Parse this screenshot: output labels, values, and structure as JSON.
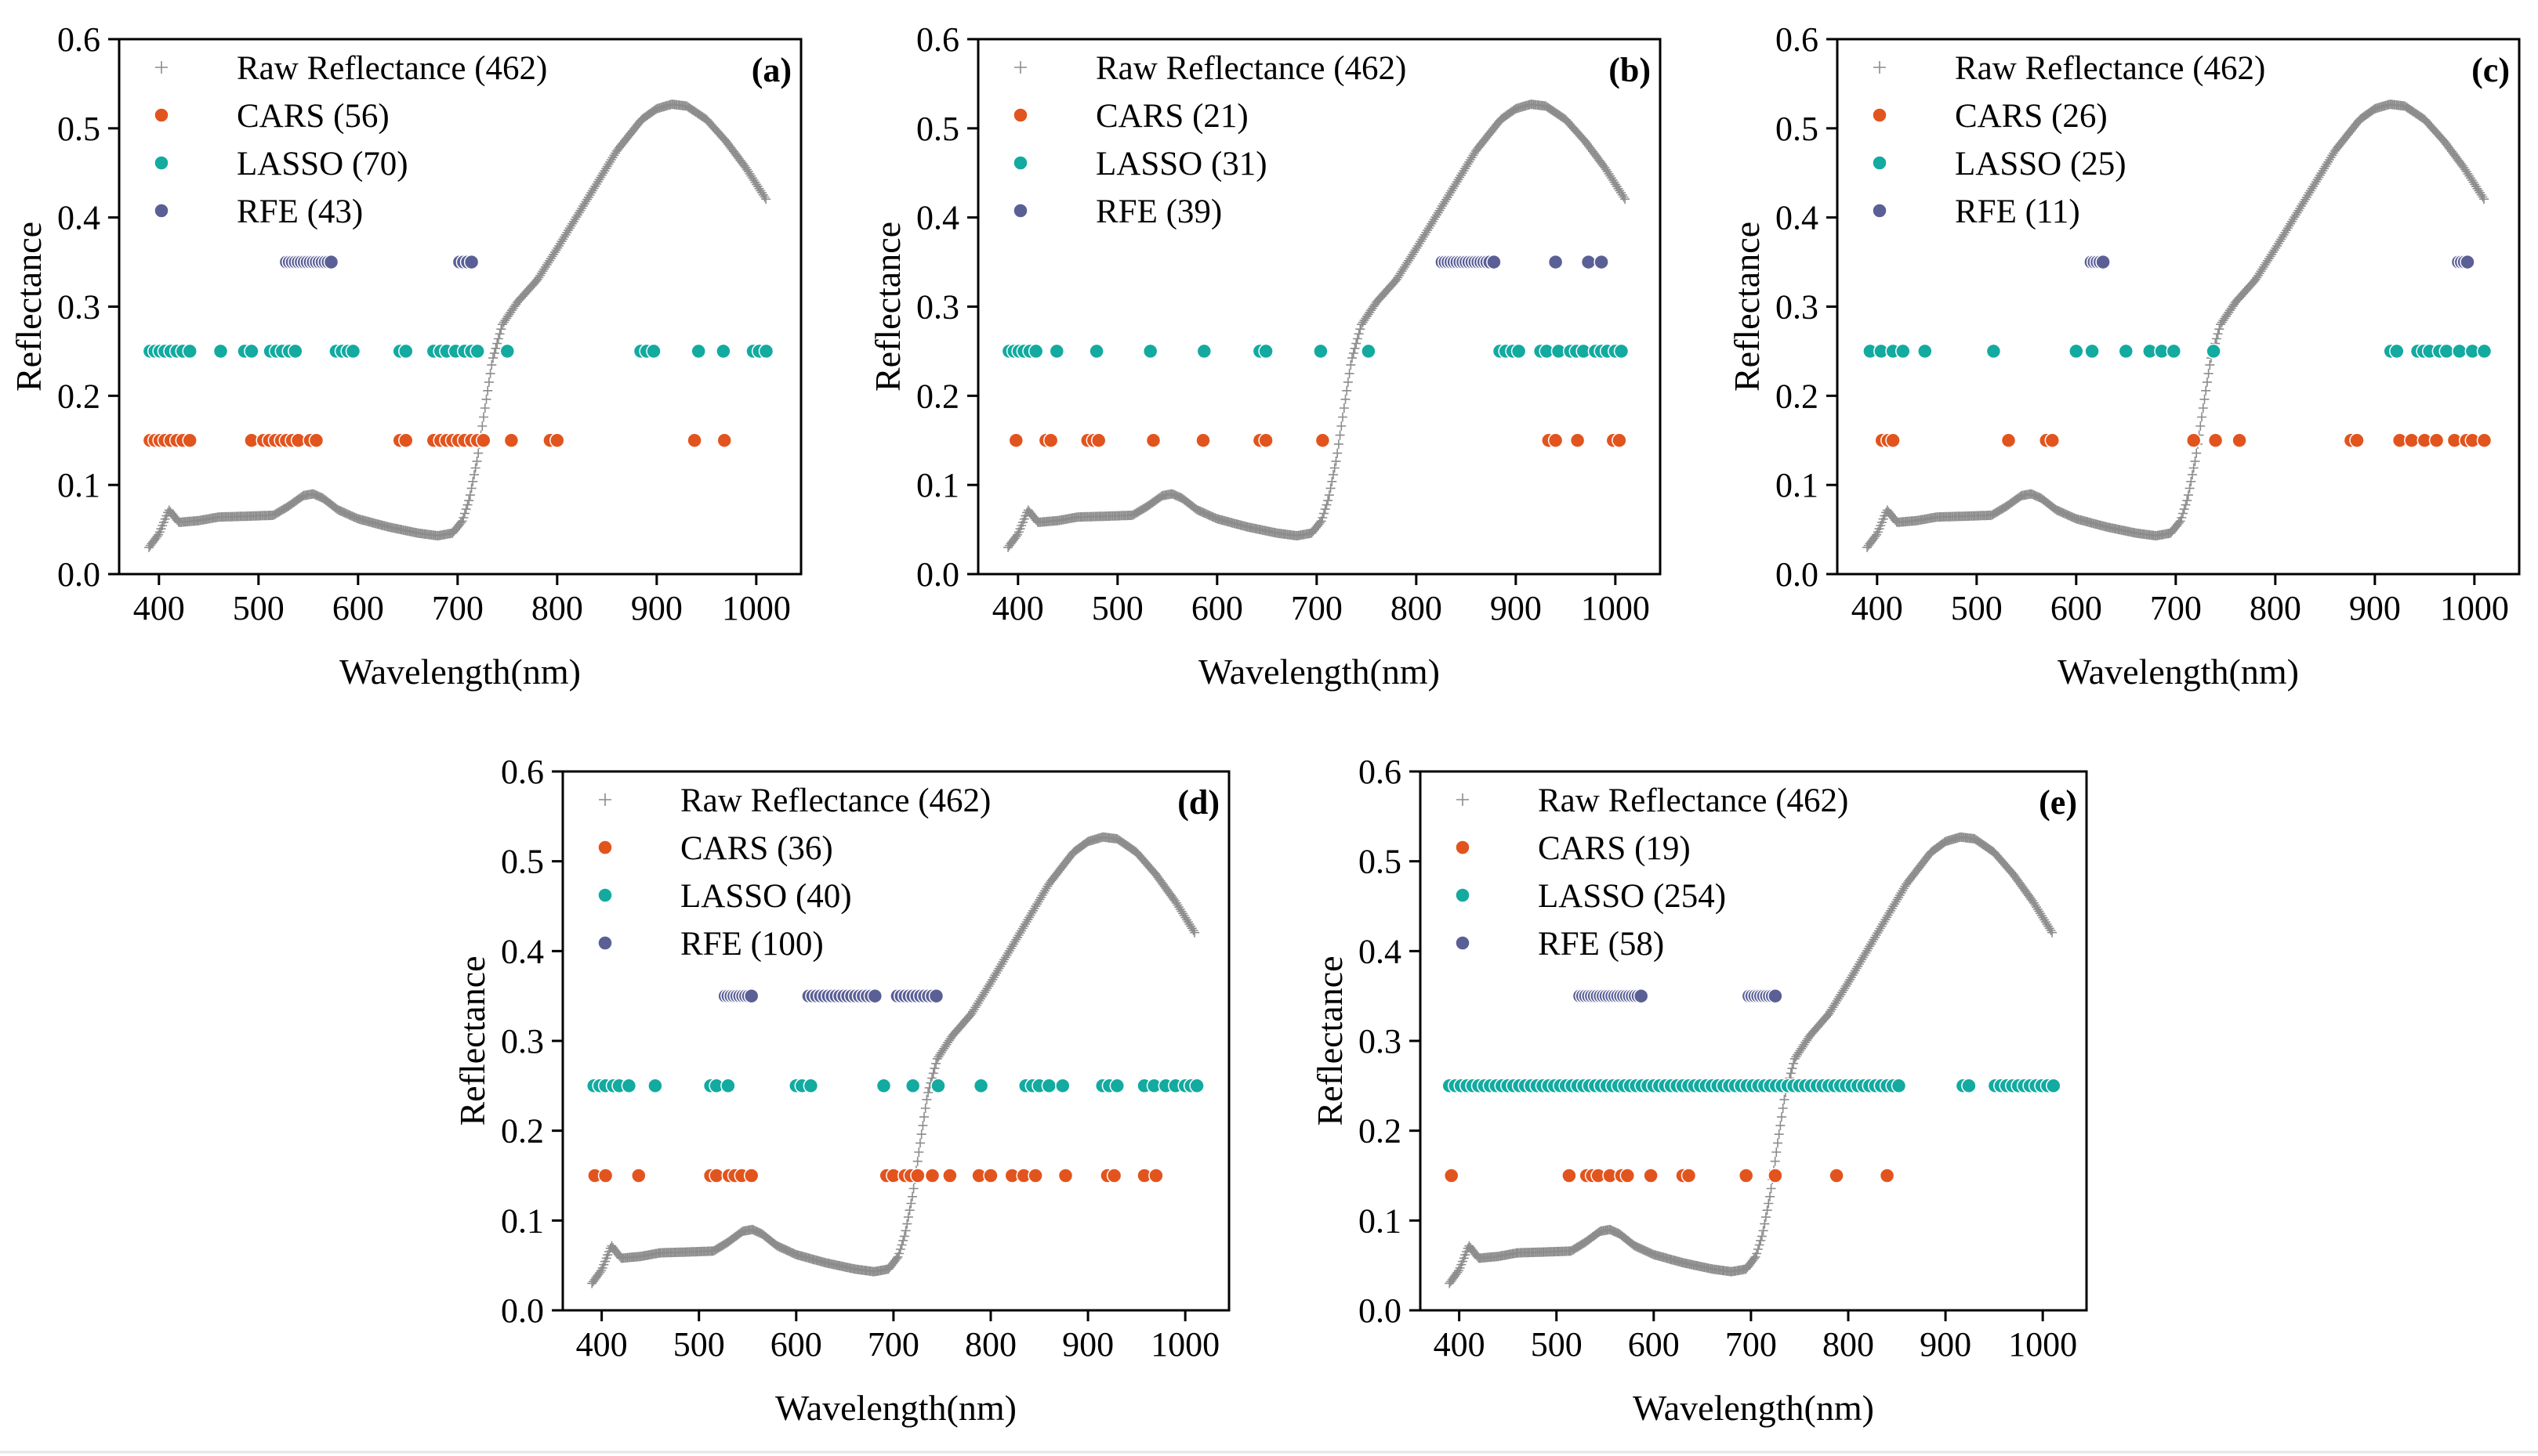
{
  "colors": {
    "raw": "#8c8c8c",
    "cars": "#e2541e",
    "lasso": "#13aaa0",
    "rfe": "#5a5f96"
  },
  "chart_data": [
    {
      "type": "scatter",
      "panel_label": "(a)",
      "xlabel": "Wavelength(nm)",
      "ylabel": "Reflectance",
      "xlim": [
        360,
        1045
      ],
      "ylim": [
        0.0,
        0.6
      ],
      "xticks": [
        "400",
        "500",
        "600",
        "700",
        "800",
        "900",
        "1000"
      ],
      "yticks": [
        "0.0",
        "0.1",
        "0.2",
        "0.3",
        "0.4",
        "0.5",
        "0.6"
      ],
      "legend": [
        "Raw Reflectance (462)",
        "CARS (56)",
        "LASSO (70)",
        "RFE (43)"
      ],
      "series": [
        {
          "name": "CARS",
          "y": 0.15,
          "x": [
            391,
            396,
            401,
            406,
            412,
            418,
            424,
            431,
            493,
            505,
            511,
            517,
            523,
            528,
            534,
            540,
            552,
            558,
            642,
            648,
            676,
            683,
            689,
            695,
            701,
            707,
            714,
            720,
            726,
            754,
            793,
            800,
            938,
            968
          ]
        },
        {
          "name": "LASSO",
          "y": 0.25,
          "x": [
            391,
            396,
            401,
            406,
            412,
            418,
            424,
            431,
            462,
            486,
            493,
            512,
            518,
            524,
            531,
            537,
            578,
            584,
            590,
            595,
            642,
            648,
            676,
            683,
            689,
            698,
            707,
            714,
            720,
            750,
            884,
            890,
            897,
            942,
            967,
            997,
            1003,
            1010
          ]
        },
        {
          "name": "RFE",
          "y": 0.35,
          "x": [
            528,
            531,
            534,
            537,
            540,
            543,
            546,
            549,
            552,
            555,
            558,
            561,
            564,
            567,
            570,
            573,
            702,
            706,
            710,
            714
          ]
        }
      ]
    },
    {
      "type": "scatter",
      "panel_label": "(b)",
      "xlabel": "Wavelength(nm)",
      "ylabel": "Reflectance",
      "xlim": [
        360,
        1045
      ],
      "ylim": [
        0.0,
        0.6
      ],
      "xticks": [
        "400",
        "500",
        "600",
        "700",
        "800",
        "900",
        "1000"
      ],
      "yticks": [
        "0.0",
        "0.1",
        "0.2",
        "0.3",
        "0.4",
        "0.5",
        "0.6"
      ],
      "legend": [
        "Raw Reflectance (462)",
        "CARS (21)",
        "LASSO (31)",
        "RFE (39)"
      ],
      "series": [
        {
          "name": "CARS",
          "y": 0.15,
          "x": [
            398,
            428,
            433,
            470,
            476,
            481,
            536,
            586,
            643,
            649,
            706,
            933,
            940,
            962,
            998,
            1004
          ]
        },
        {
          "name": "LASSO",
          "y": 0.25,
          "x": [
            391,
            396,
            401,
            406,
            412,
            418,
            439,
            479,
            533,
            587,
            643,
            649,
            704,
            752,
            884,
            890,
            897,
            903,
            925,
            931,
            943,
            955,
            961,
            968,
            980,
            986,
            992,
            1000,
            1006
          ]
        },
        {
          "name": "RFE",
          "y": 0.35,
          "x": [
            826,
            829,
            832,
            835,
            838,
            841,
            844,
            847,
            850,
            853,
            856,
            859,
            862,
            865,
            868,
            871,
            874,
            878,
            940,
            973,
            986
          ]
        }
      ]
    },
    {
      "type": "scatter",
      "panel_label": "(c)",
      "xlabel": "Wavelength(nm)",
      "ylabel": "Reflectance",
      "xlim": [
        360,
        1045
      ],
      "ylim": [
        0.0,
        0.6
      ],
      "xticks": [
        "400",
        "500",
        "600",
        "700",
        "800",
        "900",
        "1000"
      ],
      "yticks": [
        "0.0",
        "0.1",
        "0.2",
        "0.3",
        "0.4",
        "0.5",
        "0.6"
      ],
      "legend": [
        "Raw Reflectance (462)",
        "CARS (26)",
        "LASSO (25)",
        "RFE (11)"
      ],
      "series": [
        {
          "name": "CARS",
          "y": 0.15,
          "x": [
            405,
            411,
            416,
            532,
            570,
            576,
            718,
            740,
            764,
            876,
            882,
            925,
            937,
            950,
            962,
            980,
            992,
            998,
            1010
          ]
        },
        {
          "name": "LASSO",
          "y": 0.25,
          "x": [
            393,
            404,
            416,
            426,
            448,
            517,
            600,
            616,
            650,
            674,
            686,
            698,
            738,
            916,
            922,
            943,
            949,
            955,
            965,
            972,
            985,
            998,
            1010
          ]
        },
        {
          "name": "RFE",
          "y": 0.35,
          "x": [
            615,
            618,
            621,
            624,
            627,
            984,
            987,
            990,
            993
          ]
        }
      ]
    },
    {
      "type": "scatter",
      "panel_label": "(d)",
      "xlabel": "Wavelength(nm)",
      "ylabel": "Reflectance",
      "xlim": [
        360,
        1045
      ],
      "ylim": [
        0.0,
        0.6
      ],
      "xticks": [
        "400",
        "500",
        "600",
        "700",
        "800",
        "900",
        "1000"
      ],
      "yticks": [
        "0.0",
        "0.1",
        "0.2",
        "0.3",
        "0.4",
        "0.5",
        "0.6"
      ],
      "legend": [
        "Raw Reflectance (462)",
        "CARS (36)",
        "LASSO (40)",
        "RFE (100)"
      ],
      "series": [
        {
          "name": "CARS",
          "y": 0.15,
          "x": [
            393,
            404,
            438,
            512,
            518,
            531,
            537,
            544,
            554,
            693,
            700,
            712,
            718,
            725,
            740,
            758,
            788,
            800,
            822,
            834,
            846,
            877,
            920,
            927,
            958,
            970
          ]
        },
        {
          "name": "LASSO",
          "y": 0.25,
          "x": [
            392,
            398,
            404,
            412,
            418,
            428,
            455,
            512,
            518,
            530,
            600,
            606,
            615,
            690,
            720,
            746,
            790,
            836,
            843,
            850,
            860,
            874,
            915,
            922,
            930,
            958,
            968,
            980,
            990,
            1000,
            1006,
            1012
          ]
        },
        {
          "name": "RFE",
          "y": 0.35,
          "x": [
            527,
            530,
            533,
            536,
            539,
            542,
            545,
            548,
            551,
            554,
            613,
            617,
            621,
            625,
            629,
            633,
            637,
            641,
            645,
            649,
            653,
            657,
            661,
            665,
            669,
            673,
            677,
            681,
            704,
            708,
            712,
            716,
            720,
            724,
            728,
            732,
            736,
            740,
            744
          ]
        }
      ]
    },
    {
      "type": "scatter",
      "panel_label": "(e)",
      "xlabel": "Wavelength(nm)",
      "ylabel": "Reflectance",
      "xlim": [
        360,
        1045
      ],
      "ylim": [
        0.0,
        0.6
      ],
      "xticks": [
        "400",
        "500",
        "600",
        "700",
        "800",
        "900",
        "1000"
      ],
      "yticks": [
        "0.0",
        "0.1",
        "0.2",
        "0.3",
        "0.4",
        "0.5",
        "0.6"
      ],
      "legend": [
        "Raw Reflectance (462)",
        "CARS (19)",
        "LASSO (254)",
        "RFE (58)"
      ],
      "series": [
        {
          "name": "CARS",
          "y": 0.15,
          "x": [
            392,
            513,
            531,
            537,
            543,
            555,
            567,
            573,
            597,
            630,
            636,
            695,
            725,
            788,
            840
          ]
        },
        {
          "name": "LASSO",
          "y": 0.25,
          "x": [
            390,
            396,
            402,
            408,
            414,
            420,
            426,
            432,
            438,
            444,
            450,
            456,
            462,
            468,
            474,
            480,
            486,
            492,
            498,
            504,
            510,
            516,
            522,
            528,
            534,
            540,
            546,
            552,
            558,
            564,
            570,
            576,
            582,
            588,
            594,
            600,
            606,
            612,
            618,
            624,
            630,
            636,
            642,
            648,
            654,
            660,
            666,
            672,
            678,
            684,
            690,
            696,
            702,
            708,
            714,
            720,
            726,
            732,
            738,
            744,
            750,
            756,
            762,
            768,
            774,
            780,
            786,
            792,
            798,
            804,
            810,
            816,
            822,
            828,
            834,
            840,
            846,
            852,
            918,
            924,
            951,
            957,
            963,
            969,
            975,
            981,
            987,
            993,
            999,
            1005,
            1011
          ]
        },
        {
          "name": "RFE",
          "y": 0.35,
          "x": [
            524,
            527,
            530,
            533,
            536,
            539,
            542,
            545,
            548,
            551,
            554,
            557,
            560,
            563,
            566,
            569,
            572,
            575,
            578,
            581,
            584,
            587,
            698,
            701,
            704,
            707,
            710,
            713,
            716,
            719,
            722,
            725
          ]
        }
      ]
    }
  ]
}
